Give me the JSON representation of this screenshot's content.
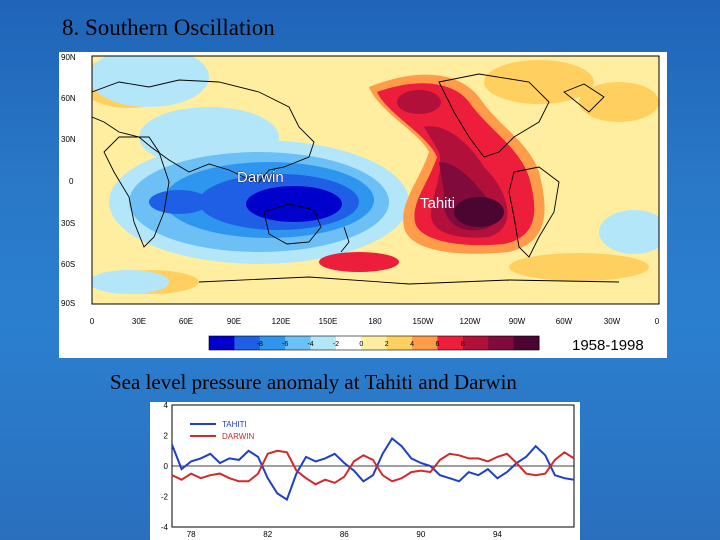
{
  "slide": {
    "title": "8. Southern Oscillation",
    "caption": "Sea level pressure anomaly at Tahiti and Darwin"
  },
  "map": {
    "period": "1958-1998",
    "latitude_labels": [
      "90N",
      "60N",
      "30N",
      "0",
      "30S",
      "60S",
      "90S"
    ],
    "longitude_labels": [
      "0",
      "30E",
      "60E",
      "90E",
      "120E",
      "150E",
      "180",
      "150W",
      "120W",
      "90W",
      "60W",
      "30W",
      "0"
    ],
    "station_labels": {
      "darwin": "Darwin",
      "tahiti": "Tahiti"
    },
    "colorbar_ticks": [
      "-8",
      "-6",
      "-4",
      "-2",
      "0",
      "2",
      "4",
      "6",
      "8"
    ],
    "colorbar_colors": [
      "#0000cc",
      "#1e5fe6",
      "#2e96ee",
      "#6cc0f5",
      "#b4e6fa",
      "#ffffff",
      "#ffeea0",
      "#ffd060",
      "#ff9c4a",
      "#ec1e3c",
      "#b0103a",
      "#800a3c",
      "#4a0630"
    ]
  },
  "timeseries": {
    "legend": {
      "tahiti": "TAHITI",
      "darwin": "DARWIN"
    },
    "colors": {
      "tahiti": "#1f3fc8",
      "darwin": "#d22a2a"
    },
    "y_ticks": [
      "4",
      "2",
      "0",
      "-2",
      "-4"
    ],
    "x_ticks": [
      "78",
      "82",
      "86",
      "90",
      "94"
    ]
  },
  "chart_data": {
    "type": "line",
    "xlim": [
      1977,
      1998
    ],
    "ylim": [
      -4,
      4
    ],
    "x_ticks": [
      1978,
      1982,
      1986,
      1990,
      1994
    ],
    "y_ticks": [
      4,
      2,
      0,
      -2,
      -4
    ],
    "series": [
      {
        "name": "TAHITI",
        "x": [
          1977.0,
          1977.5,
          1978.0,
          1978.5,
          1979.0,
          1979.5,
          1980.0,
          1980.5,
          1981.0,
          1981.5,
          1982.0,
          1982.5,
          1983.0,
          1983.5,
          1984.0,
          1984.5,
          1985.0,
          1985.5,
          1986.0,
          1986.5,
          1987.0,
          1987.5,
          1988.0,
          1988.5,
          1989.0,
          1989.5,
          1990.0,
          1990.5,
          1991.0,
          1991.5,
          1992.0,
          1992.5,
          1993.0,
          1993.5,
          1994.0,
          1994.5,
          1995.0,
          1995.5,
          1996.0,
          1996.5,
          1997.0,
          1997.5,
          1998.0
        ],
        "values": [
          1.4,
          -0.2,
          0.3,
          0.5,
          0.8,
          0.2,
          0.5,
          0.4,
          1.0,
          0.6,
          -0.8,
          -1.8,
          -2.2,
          -0.5,
          0.6,
          0.3,
          0.5,
          0.8,
          0.2,
          -0.3,
          -1.0,
          -0.6,
          0.8,
          1.8,
          1.3,
          0.5,
          0.2,
          0.0,
          -0.6,
          -0.8,
          -1.0,
          -0.4,
          -0.6,
          -0.2,
          -0.8,
          -0.4,
          0.2,
          0.6,
          1.3,
          0.7,
          -0.6,
          -0.8,
          -0.9
        ]
      },
      {
        "name": "DARWIN",
        "x": [
          1977.0,
          1977.5,
          1978.0,
          1978.5,
          1979.0,
          1979.5,
          1980.0,
          1980.5,
          1981.0,
          1981.5,
          1982.0,
          1982.5,
          1983.0,
          1983.5,
          1984.0,
          1984.5,
          1985.0,
          1985.5,
          1986.0,
          1986.5,
          1987.0,
          1987.5,
          1988.0,
          1988.5,
          1989.0,
          1989.5,
          1990.0,
          1990.5,
          1991.0,
          1991.5,
          1992.0,
          1992.5,
          1993.0,
          1993.5,
          1994.0,
          1994.5,
          1995.0,
          1995.5,
          1996.0,
          1996.5,
          1997.0,
          1997.5,
          1998.0
        ],
        "values": [
          -0.6,
          -0.9,
          -0.5,
          -0.8,
          -0.6,
          -0.5,
          -0.8,
          -1.0,
          -1.0,
          -0.5,
          0.8,
          1.0,
          0.9,
          -0.3,
          -0.8,
          -1.2,
          -0.9,
          -1.1,
          -0.7,
          0.3,
          0.7,
          0.4,
          -0.6,
          -1.0,
          -0.8,
          -0.4,
          -0.3,
          -0.4,
          0.4,
          0.8,
          0.7,
          0.5,
          0.5,
          0.3,
          0.6,
          0.8,
          0.2,
          -0.5,
          -0.6,
          -0.5,
          0.4,
          0.9,
          0.5
        ]
      }
    ]
  }
}
